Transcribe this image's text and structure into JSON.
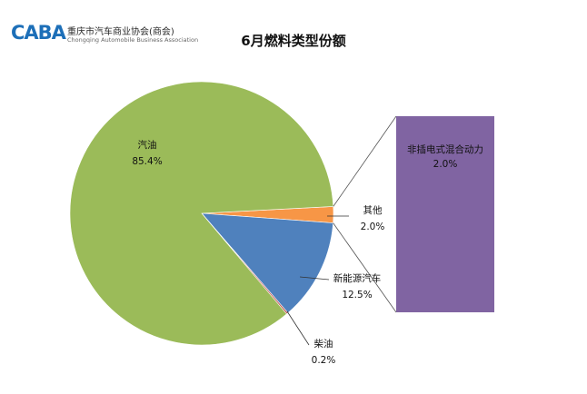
{
  "logo": {
    "mark": "CABA",
    "name_cn": "重庆市汽车商业协会(商会)",
    "name_en": "Chongqing Automobile Business Association"
  },
  "chart_data": {
    "type": "pie",
    "title": "6月燃料类型份额",
    "slices": [
      {
        "name": "其他",
        "value": 2.0,
        "label": "2.0%",
        "color": "#f79646"
      },
      {
        "name": "新能源汽车",
        "value": 12.5,
        "label": "12.5%",
        "color": "#4f81bd"
      },
      {
        "name": "柴油",
        "value": 0.2,
        "label": "0.2%",
        "color": "#c0504d"
      },
      {
        "name": "汽油",
        "value": 85.4,
        "label": "85.4%",
        "color": "#9bbb59"
      }
    ],
    "breakout": {
      "parent": "其他",
      "items": [
        {
          "name": "非插电式混合动力",
          "value": 2.0,
          "label": "2.0%",
          "color": "#8064a2"
        }
      ]
    }
  }
}
